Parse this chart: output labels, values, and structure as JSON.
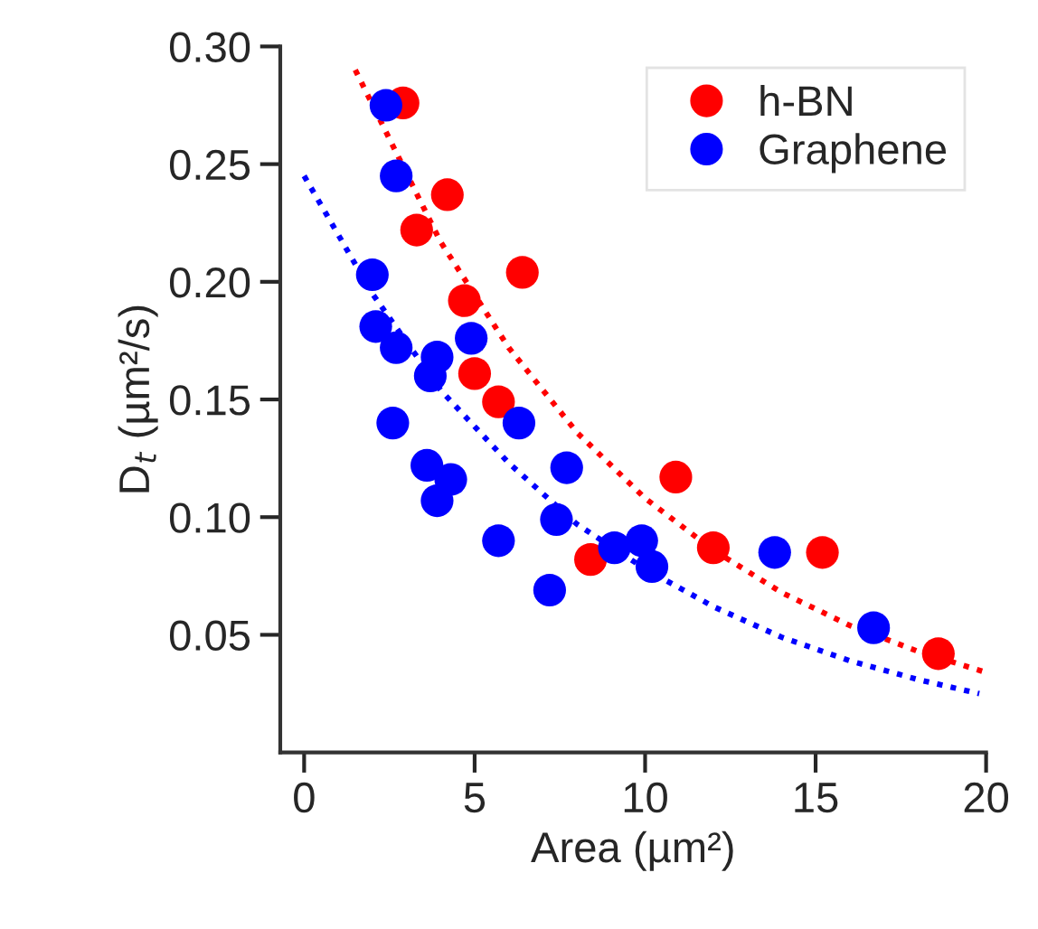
{
  "chart_data": {
    "type": "scatter",
    "xlabel": "Area (µm²)",
    "ylabel": "D$_{t}$ (µm²/s)",
    "xlim": [
      -0.7,
      20
    ],
    "ylim": [
      0,
      0.3
    ],
    "xticks": [
      0,
      5,
      10,
      15,
      20
    ],
    "yticks": [
      {
        "value": 0.05,
        "label": "0.05"
      },
      {
        "value": 0.1,
        "label": "0.10"
      },
      {
        "value": 0.15,
        "label": "0.15"
      },
      {
        "value": 0.2,
        "label": "0.20"
      },
      {
        "value": 0.25,
        "label": "0.25"
      },
      {
        "value": 0.3,
        "label": "0.30"
      }
    ],
    "legend": "top right",
    "grid": false,
    "marker": "circle",
    "series": [
      {
        "name": "h-BN",
        "color": "#ff0000",
        "x": [
          2.9,
          4.2,
          3.3,
          4.7,
          6.4,
          5.0,
          5.7,
          8.4,
          10.9,
          12.0,
          15.2,
          18.6
        ],
        "values": [
          0.276,
          0.237,
          0.222,
          0.192,
          0.204,
          0.161,
          0.149,
          0.082,
          0.117,
          0.087,
          0.085,
          0.042
        ]
      },
      {
        "name": "Graphene",
        "color": "#0000ff",
        "x": [
          2.4,
          2.7,
          2.0,
          2.1,
          2.7,
          3.9,
          4.9,
          3.7,
          2.6,
          6.3,
          7.7,
          3.6,
          4.3,
          3.9,
          7.4,
          5.7,
          7.2,
          9.1,
          9.9,
          10.2,
          13.8,
          16.7
        ],
        "values": [
          0.275,
          0.245,
          0.203,
          0.181,
          0.172,
          0.168,
          0.176,
          0.16,
          0.14,
          0.14,
          0.121,
          0.122,
          0.116,
          0.107,
          0.099,
          0.09,
          0.069,
          0.087,
          0.09,
          0.079,
          0.085,
          0.053
        ]
      },
      {
        "type": "line",
        "marker": "none",
        "line_style": "dotted",
        "color": "#ff0000",
        "x": [
          1.5,
          4,
          6,
          8,
          10,
          12,
          14,
          16,
          18,
          20
        ],
        "values": [
          0.29,
          0.217,
          0.172,
          0.136,
          0.108,
          0.086,
          0.068,
          0.054,
          0.043,
          0.034
        ]
      },
      {
        "type": "line",
        "marker": "none",
        "line_style": "dotted",
        "color": "#0000ff",
        "x": [
          0,
          2,
          4,
          6,
          8,
          10,
          12,
          14,
          16,
          18,
          19.8
        ],
        "values": [
          0.245,
          0.195,
          0.154,
          0.123,
          0.097,
          0.078,
          0.062,
          0.049,
          0.039,
          0.031,
          0.025
        ]
      }
    ]
  }
}
